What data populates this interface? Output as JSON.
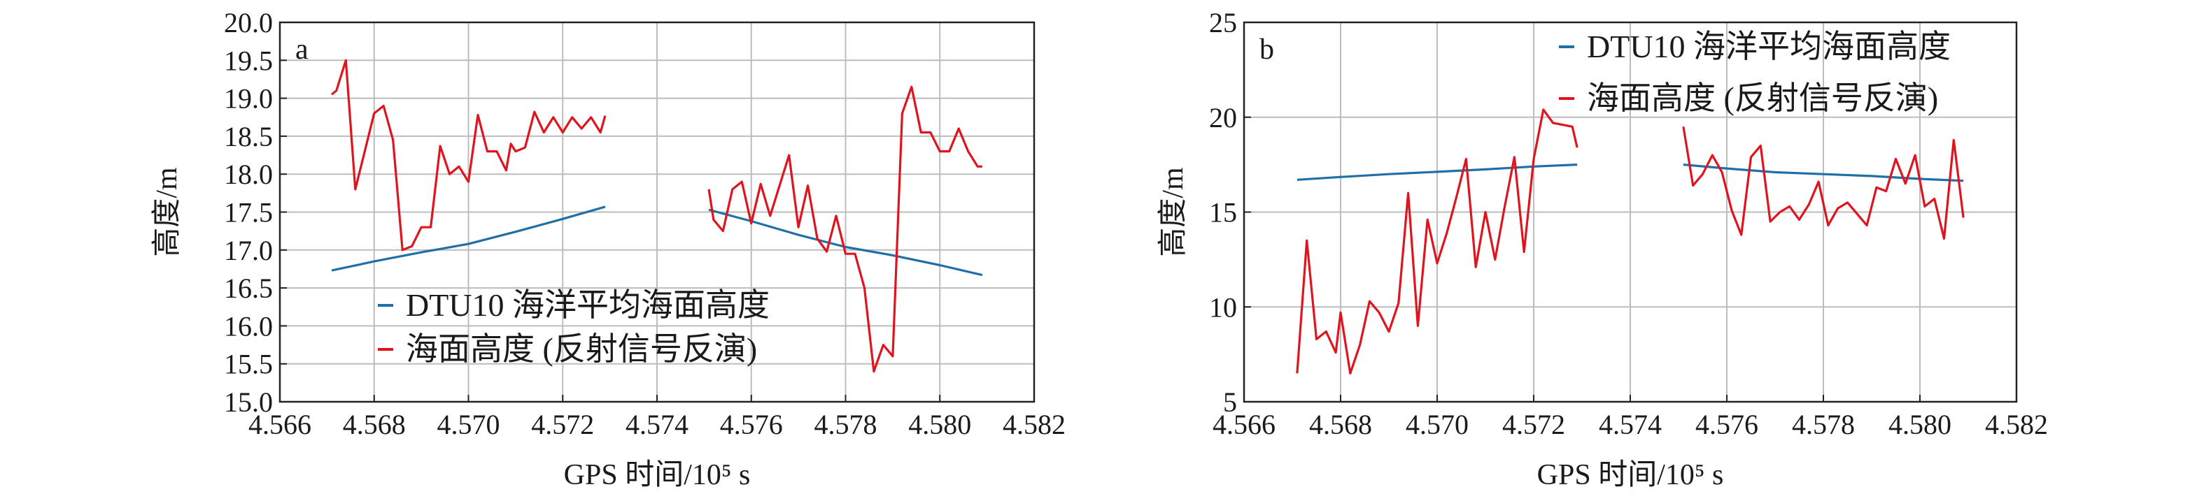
{
  "chart_data": [
    {
      "type": "line",
      "panel_label": "a",
      "xlabel": "GPS 时间/10⁵ s",
      "ylabel": "高度/m",
      "xlim": [
        4.566,
        4.582
      ],
      "ylim": [
        15.0,
        20.0
      ],
      "x_ticks": [
        4.566,
        4.568,
        4.57,
        4.572,
        4.574,
        4.576,
        4.578,
        4.58,
        4.582
      ],
      "x_tick_labels": [
        "4.566",
        "4.568",
        "4.570",
        "4.572",
        "4.574",
        "4.576",
        "4.578",
        "4.580",
        "4.582"
      ],
      "y_ticks": [
        15.0,
        15.5,
        16.0,
        16.5,
        17.0,
        17.5,
        18.0,
        18.5,
        19.0,
        19.5,
        20.0
      ],
      "y_tick_labels": [
        "15.0",
        "15.5",
        "16.0",
        "16.5",
        "17.0",
        "17.5",
        "18.0",
        "18.5",
        "19.0",
        "19.5",
        "20.0"
      ],
      "grid": true,
      "legend_position": "bottom-center",
      "series": [
        {
          "name": "DTU10 海洋平均海面高度",
          "color": "#1f6fa8",
          "segments": [
            {
              "x": [
                4.5671,
                4.568,
                4.569,
                4.57,
                4.571,
                4.572,
                4.5729
              ],
              "y": [
                16.73,
                16.85,
                16.97,
                17.08,
                17.24,
                17.41,
                17.57
              ]
            },
            {
              "x": [
                4.5751,
                4.576,
                4.577,
                4.578,
                4.579,
                4.58,
                4.5809
              ],
              "y": [
                17.53,
                17.38,
                17.2,
                17.04,
                16.93,
                16.8,
                16.67
              ]
            }
          ]
        },
        {
          "name": "海面高度 (反射信号反演)",
          "color": "#e0141e",
          "segments": [
            {
              "x": [
                4.5671,
                4.5672,
                4.5674,
                4.5676,
                4.5678,
                4.568,
                4.5682,
                4.5684,
                4.5686,
                4.5688,
                4.569,
                4.5692,
                4.5694,
                4.5696,
                4.5698,
                4.57,
                4.5702,
                4.5704,
                4.5706,
                4.5708,
                4.5709,
                4.571,
                4.5712,
                4.5714,
                4.5716,
                4.5718,
                4.572,
                4.5722,
                4.5724,
                4.5726,
                4.5728,
                4.5729
              ],
              "y": [
                19.05,
                19.1,
                19.5,
                17.8,
                18.3,
                18.8,
                18.9,
                18.45,
                17.0,
                17.05,
                17.3,
                17.3,
                18.37,
                18.0,
                18.1,
                17.9,
                18.78,
                18.3,
                18.3,
                18.05,
                18.4,
                18.3,
                18.35,
                18.82,
                18.55,
                18.75,
                18.55,
                18.75,
                18.6,
                18.75,
                18.55,
                18.77
              ]
            },
            {
              "x": [
                4.5751,
                4.5752,
                4.5754,
                4.5756,
                4.5758,
                4.576,
                4.5762,
                4.5764,
                4.5766,
                4.5768,
                4.577,
                4.5772,
                4.5774,
                4.5776,
                4.5778,
                4.578,
                4.5782,
                4.5784,
                4.5786,
                4.5788,
                4.579,
                4.5792,
                4.5794,
                4.5796,
                4.5798,
                4.58,
                4.5802,
                4.5804,
                4.5806,
                4.5808,
                4.5809
              ],
              "y": [
                17.8,
                17.4,
                17.25,
                17.8,
                17.9,
                17.35,
                17.87,
                17.45,
                17.85,
                18.25,
                17.3,
                17.85,
                17.15,
                16.98,
                17.45,
                16.95,
                16.95,
                16.5,
                15.4,
                15.75,
                15.6,
                18.8,
                19.15,
                18.55,
                18.55,
                18.3,
                18.3,
                18.6,
                18.3,
                18.1,
                18.1
              ]
            }
          ]
        }
      ]
    },
    {
      "type": "line",
      "panel_label": "b",
      "xlabel": "GPS 时间/10⁵ s",
      "ylabel": "高度/m",
      "xlim": [
        4.566,
        4.582
      ],
      "ylim": [
        5,
        25
      ],
      "x_ticks": [
        4.566,
        4.568,
        4.57,
        4.572,
        4.574,
        4.576,
        4.578,
        4.58,
        4.582
      ],
      "x_tick_labels": [
        "4.566",
        "4.568",
        "4.570",
        "4.572",
        "4.574",
        "4.576",
        "4.578",
        "4.580",
        "4.582"
      ],
      "y_ticks": [
        5,
        10,
        15,
        20,
        25
      ],
      "y_tick_labels": [
        "5",
        "10",
        "15",
        "20",
        "25"
      ],
      "grid": true,
      "legend_position": "top-right",
      "series": [
        {
          "name": "DTU10 海洋平均海面高度",
          "color": "#1f6fa8",
          "segments": [
            {
              "x": [
                4.5671,
                4.568,
                4.569,
                4.57,
                4.571,
                4.572,
                4.5729
              ],
              "y": [
                16.7,
                16.85,
                17.0,
                17.12,
                17.25,
                17.4,
                17.5
              ]
            },
            {
              "x": [
                4.5751,
                4.576,
                4.577,
                4.578,
                4.579,
                4.58,
                4.5809
              ],
              "y": [
                17.5,
                17.3,
                17.1,
                17.0,
                16.9,
                16.75,
                16.65
              ]
            }
          ]
        },
        {
          "name": "海面高度 (反射信号反演)",
          "color": "#e0141e",
          "segments": [
            {
              "x": [
                4.5671,
                4.5673,
                4.5675,
                4.5677,
                4.5679,
                4.568,
                4.5682,
                4.5684,
                4.5686,
                4.5688,
                4.569,
                4.5692,
                4.5694,
                4.5696,
                4.5698,
                4.57,
                4.5702,
                4.5704,
                4.5706,
                4.5708,
                4.571,
                4.5712,
                4.5714,
                4.5716,
                4.5718,
                4.572,
                4.5722,
                4.5724,
                4.5726,
                4.5728,
                4.5729
              ],
              "y": [
                6.5,
                13.5,
                8.3,
                8.7,
                7.6,
                9.7,
                6.5,
                8.0,
                10.3,
                9.7,
                8.7,
                10.2,
                16.0,
                9.0,
                14.6,
                12.3,
                13.9,
                15.8,
                17.8,
                12.1,
                15.0,
                12.5,
                15.3,
                17.9,
                12.9,
                17.8,
                20.4,
                19.7,
                19.6,
                19.5,
                18.4
              ]
            },
            {
              "x": [
                4.5751,
                4.5753,
                4.5755,
                4.5757,
                4.5759,
                4.5761,
                4.5763,
                4.5765,
                4.5767,
                4.5769,
                4.5771,
                4.5773,
                4.5775,
                4.5777,
                4.5779,
                4.5781,
                4.5783,
                4.5785,
                4.5787,
                4.5789,
                4.5791,
                4.5793,
                4.5795,
                4.5797,
                4.5799,
                4.5801,
                4.5803,
                4.5805,
                4.5807,
                4.5809
              ],
              "y": [
                19.5,
                16.4,
                17.0,
                18.0,
                17.1,
                15.1,
                13.8,
                17.9,
                18.5,
                14.5,
                15.0,
                15.3,
                14.6,
                15.4,
                16.6,
                14.3,
                15.2,
                15.5,
                14.9,
                14.3,
                16.3,
                16.1,
                17.8,
                16.5,
                18.0,
                15.3,
                15.7,
                13.6,
                18.8,
                14.7
              ]
            }
          ]
        }
      ]
    }
  ]
}
